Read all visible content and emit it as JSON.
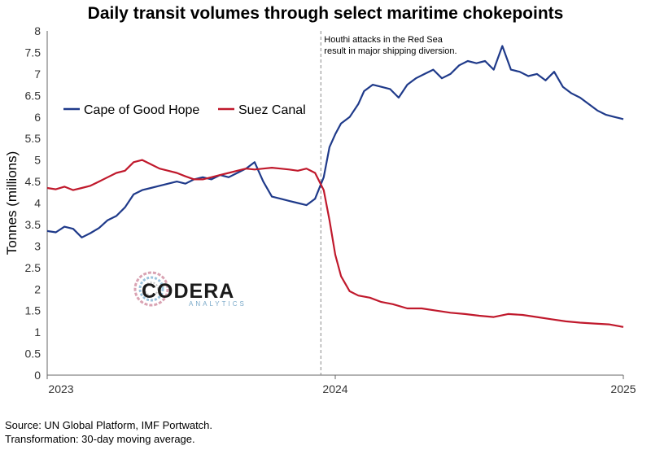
{
  "chart_data": {
    "type": "line",
    "title": "Daily transit volumes through select maritime chokepoints",
    "xlabel": "",
    "ylabel": "Tonnes (millions)",
    "ylim": [
      0,
      8
    ],
    "yticks": [
      "0",
      "0.5",
      "1",
      "1.5",
      "2",
      "2.5",
      "3",
      "3.5",
      "4",
      "4.5",
      "5",
      "5.5",
      "6",
      "6.5",
      "7",
      "7.5",
      "8"
    ],
    "xlim": [
      2023.0,
      2025.0
    ],
    "xticks": [
      {
        "value": 2023.0,
        "label": "2023"
      },
      {
        "value": 2024.0,
        "label": "2024"
      },
      {
        "value": 2025.0,
        "label": "2025"
      }
    ],
    "grid": false,
    "legend_position": "upper-left",
    "annotation": {
      "x": 2023.95,
      "lines": [
        "Houthi attacks in the Red Sea",
        "result in major shipping diversion."
      ]
    },
    "series": [
      {
        "name": "Cape of Good Hope",
        "color": "#1f3a8a",
        "x": [
          2023.0,
          2023.03,
          2023.06,
          2023.09,
          2023.12,
          2023.15,
          2023.18,
          2023.21,
          2023.24,
          2023.27,
          2023.3,
          2023.33,
          2023.36,
          2023.39,
          2023.42,
          2023.45,
          2023.48,
          2023.51,
          2023.54,
          2023.57,
          2023.6,
          2023.63,
          2023.66,
          2023.69,
          2023.72,
          2023.75,
          2023.78,
          2023.81,
          2023.84,
          2023.87,
          2023.9,
          2023.93,
          2023.96,
          2023.98,
          2024.0,
          2024.02,
          2024.05,
          2024.08,
          2024.1,
          2024.13,
          2024.16,
          2024.19,
          2024.22,
          2024.25,
          2024.28,
          2024.31,
          2024.34,
          2024.37,
          2024.4,
          2024.43,
          2024.46,
          2024.49,
          2024.52,
          2024.55,
          2024.58,
          2024.61,
          2024.64,
          2024.67,
          2024.7,
          2024.73,
          2024.76,
          2024.79,
          2024.82,
          2024.85,
          2024.88,
          2024.91,
          2024.94,
          2024.97,
          2025.0
        ],
        "values": [
          3.35,
          3.32,
          3.45,
          3.4,
          3.2,
          3.3,
          3.42,
          3.6,
          3.7,
          3.9,
          4.2,
          4.3,
          4.35,
          4.4,
          4.45,
          4.5,
          4.45,
          4.55,
          4.6,
          4.55,
          4.65,
          4.6,
          4.7,
          4.8,
          4.95,
          4.5,
          4.15,
          4.1,
          4.05,
          4.0,
          3.95,
          4.1,
          4.6,
          5.3,
          5.6,
          5.85,
          6.0,
          6.3,
          6.6,
          6.75,
          6.7,
          6.65,
          6.45,
          6.75,
          6.9,
          7.0,
          7.1,
          6.9,
          7.0,
          7.2,
          7.3,
          7.25,
          7.3,
          7.1,
          7.65,
          7.1,
          7.05,
          6.95,
          7.0,
          6.85,
          7.05,
          6.7,
          6.55,
          6.45,
          6.3,
          6.15,
          6.05,
          6.0,
          5.95
        ]
      },
      {
        "name": "Suez Canal",
        "color": "#c0192c",
        "x": [
          2023.0,
          2023.03,
          2023.06,
          2023.09,
          2023.12,
          2023.15,
          2023.18,
          2023.21,
          2023.24,
          2023.27,
          2023.3,
          2023.33,
          2023.36,
          2023.39,
          2023.42,
          2023.45,
          2023.48,
          2023.51,
          2023.54,
          2023.57,
          2023.6,
          2023.63,
          2023.66,
          2023.69,
          2023.72,
          2023.75,
          2023.78,
          2023.81,
          2023.84,
          2023.87,
          2023.9,
          2023.93,
          2023.96,
          2023.98,
          2024.0,
          2024.02,
          2024.05,
          2024.08,
          2024.12,
          2024.16,
          2024.2,
          2024.25,
          2024.3,
          2024.35,
          2024.4,
          2024.45,
          2024.5,
          2024.55,
          2024.6,
          2024.65,
          2024.7,
          2024.75,
          2024.8,
          2024.85,
          2024.9,
          2024.95,
          2025.0
        ],
        "values": [
          4.35,
          4.32,
          4.38,
          4.3,
          4.35,
          4.4,
          4.5,
          4.6,
          4.7,
          4.75,
          4.95,
          5.0,
          4.9,
          4.8,
          4.75,
          4.7,
          4.62,
          4.55,
          4.55,
          4.6,
          4.65,
          4.7,
          4.75,
          4.8,
          4.78,
          4.8,
          4.82,
          4.8,
          4.78,
          4.75,
          4.8,
          4.7,
          4.3,
          3.6,
          2.8,
          2.3,
          1.95,
          1.85,
          1.8,
          1.7,
          1.65,
          1.55,
          1.55,
          1.5,
          1.45,
          1.42,
          1.38,
          1.35,
          1.42,
          1.4,
          1.35,
          1.3,
          1.25,
          1.22,
          1.2,
          1.18,
          1.12
        ]
      }
    ]
  },
  "logo": {
    "name": "CODERA",
    "subtitle": "ANALYTICS"
  },
  "source": {
    "line1": "Source: UN Global Platform, IMF Portwatch.",
    "line2": "Transformation: 30-day moving average."
  },
  "colors": {
    "axis": "#666666",
    "annotation_line": "#888888"
  }
}
